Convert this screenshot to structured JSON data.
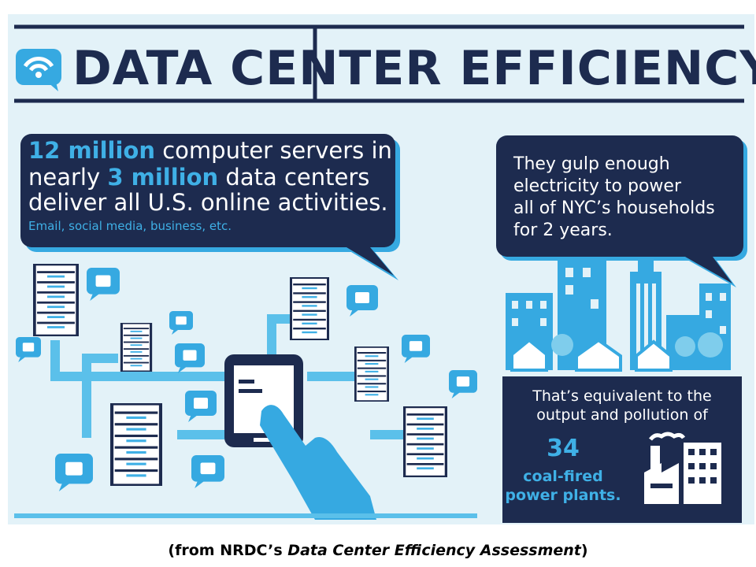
{
  "header": {
    "title": "DATA CENTER EFFICIENCY"
  },
  "servers_bubble": {
    "lines": [
      {
        "highlight": "12 million",
        "text": "computer servers in"
      },
      {
        "text": "nearly",
        "highlight": "3 million",
        "rest": "data centers"
      },
      {
        "text": "deliver all U.S. online activities."
      }
    ],
    "examples": "Email, social media, business, etc."
  },
  "energy_bubble": {
    "lines": [
      "They gulp enough",
      "electricity to power",
      "all of NYC’s households",
      "for 2 years."
    ]
  },
  "equivalence": {
    "lines": [
      "That’s equivalent to the",
      "output and pollution of"
    ],
    "number": "34",
    "label_lines": [
      "coal-fired",
      "power plants."
    ]
  },
  "caption": {
    "prefix": "(from NRDC’s",
    "source": "Data Center Efficiency Assessment",
    "suffix": ")"
  }
}
